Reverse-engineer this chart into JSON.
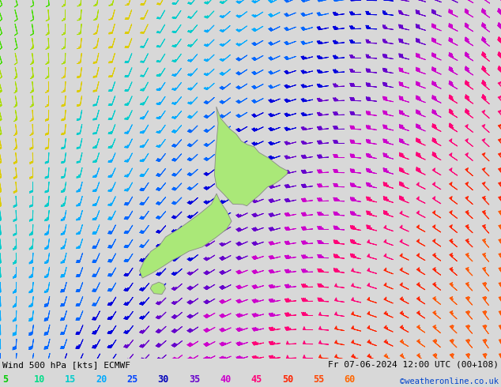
{
  "title_left": "Wind 500 hPa [kts] ECMWF",
  "title_right": "Fr 07-06-2024 12:00 UTC (00+108)",
  "credit": "©weatheronline.co.uk",
  "legend_values": [
    5,
    10,
    15,
    20,
    25,
    30,
    35,
    40,
    45,
    50,
    55,
    60
  ],
  "legend_colors": [
    "#00cc00",
    "#00dd88",
    "#00cccc",
    "#00aaff",
    "#0044ff",
    "#0000bb",
    "#6600cc",
    "#cc00cc",
    "#ff0077",
    "#ff2200",
    "#ff4400",
    "#ff6600"
  ],
  "background_color": "#d8d8d8",
  "land_color": "#aae878",
  "land_edge_color": "#888888",
  "fig_width": 6.34,
  "fig_height": 4.9,
  "dpi": 100,
  "nx": 32,
  "ny": 26,
  "lon_min": 155.0,
  "lon_max": 196.0,
  "lat_min": -52.0,
  "lat_max": -27.0
}
